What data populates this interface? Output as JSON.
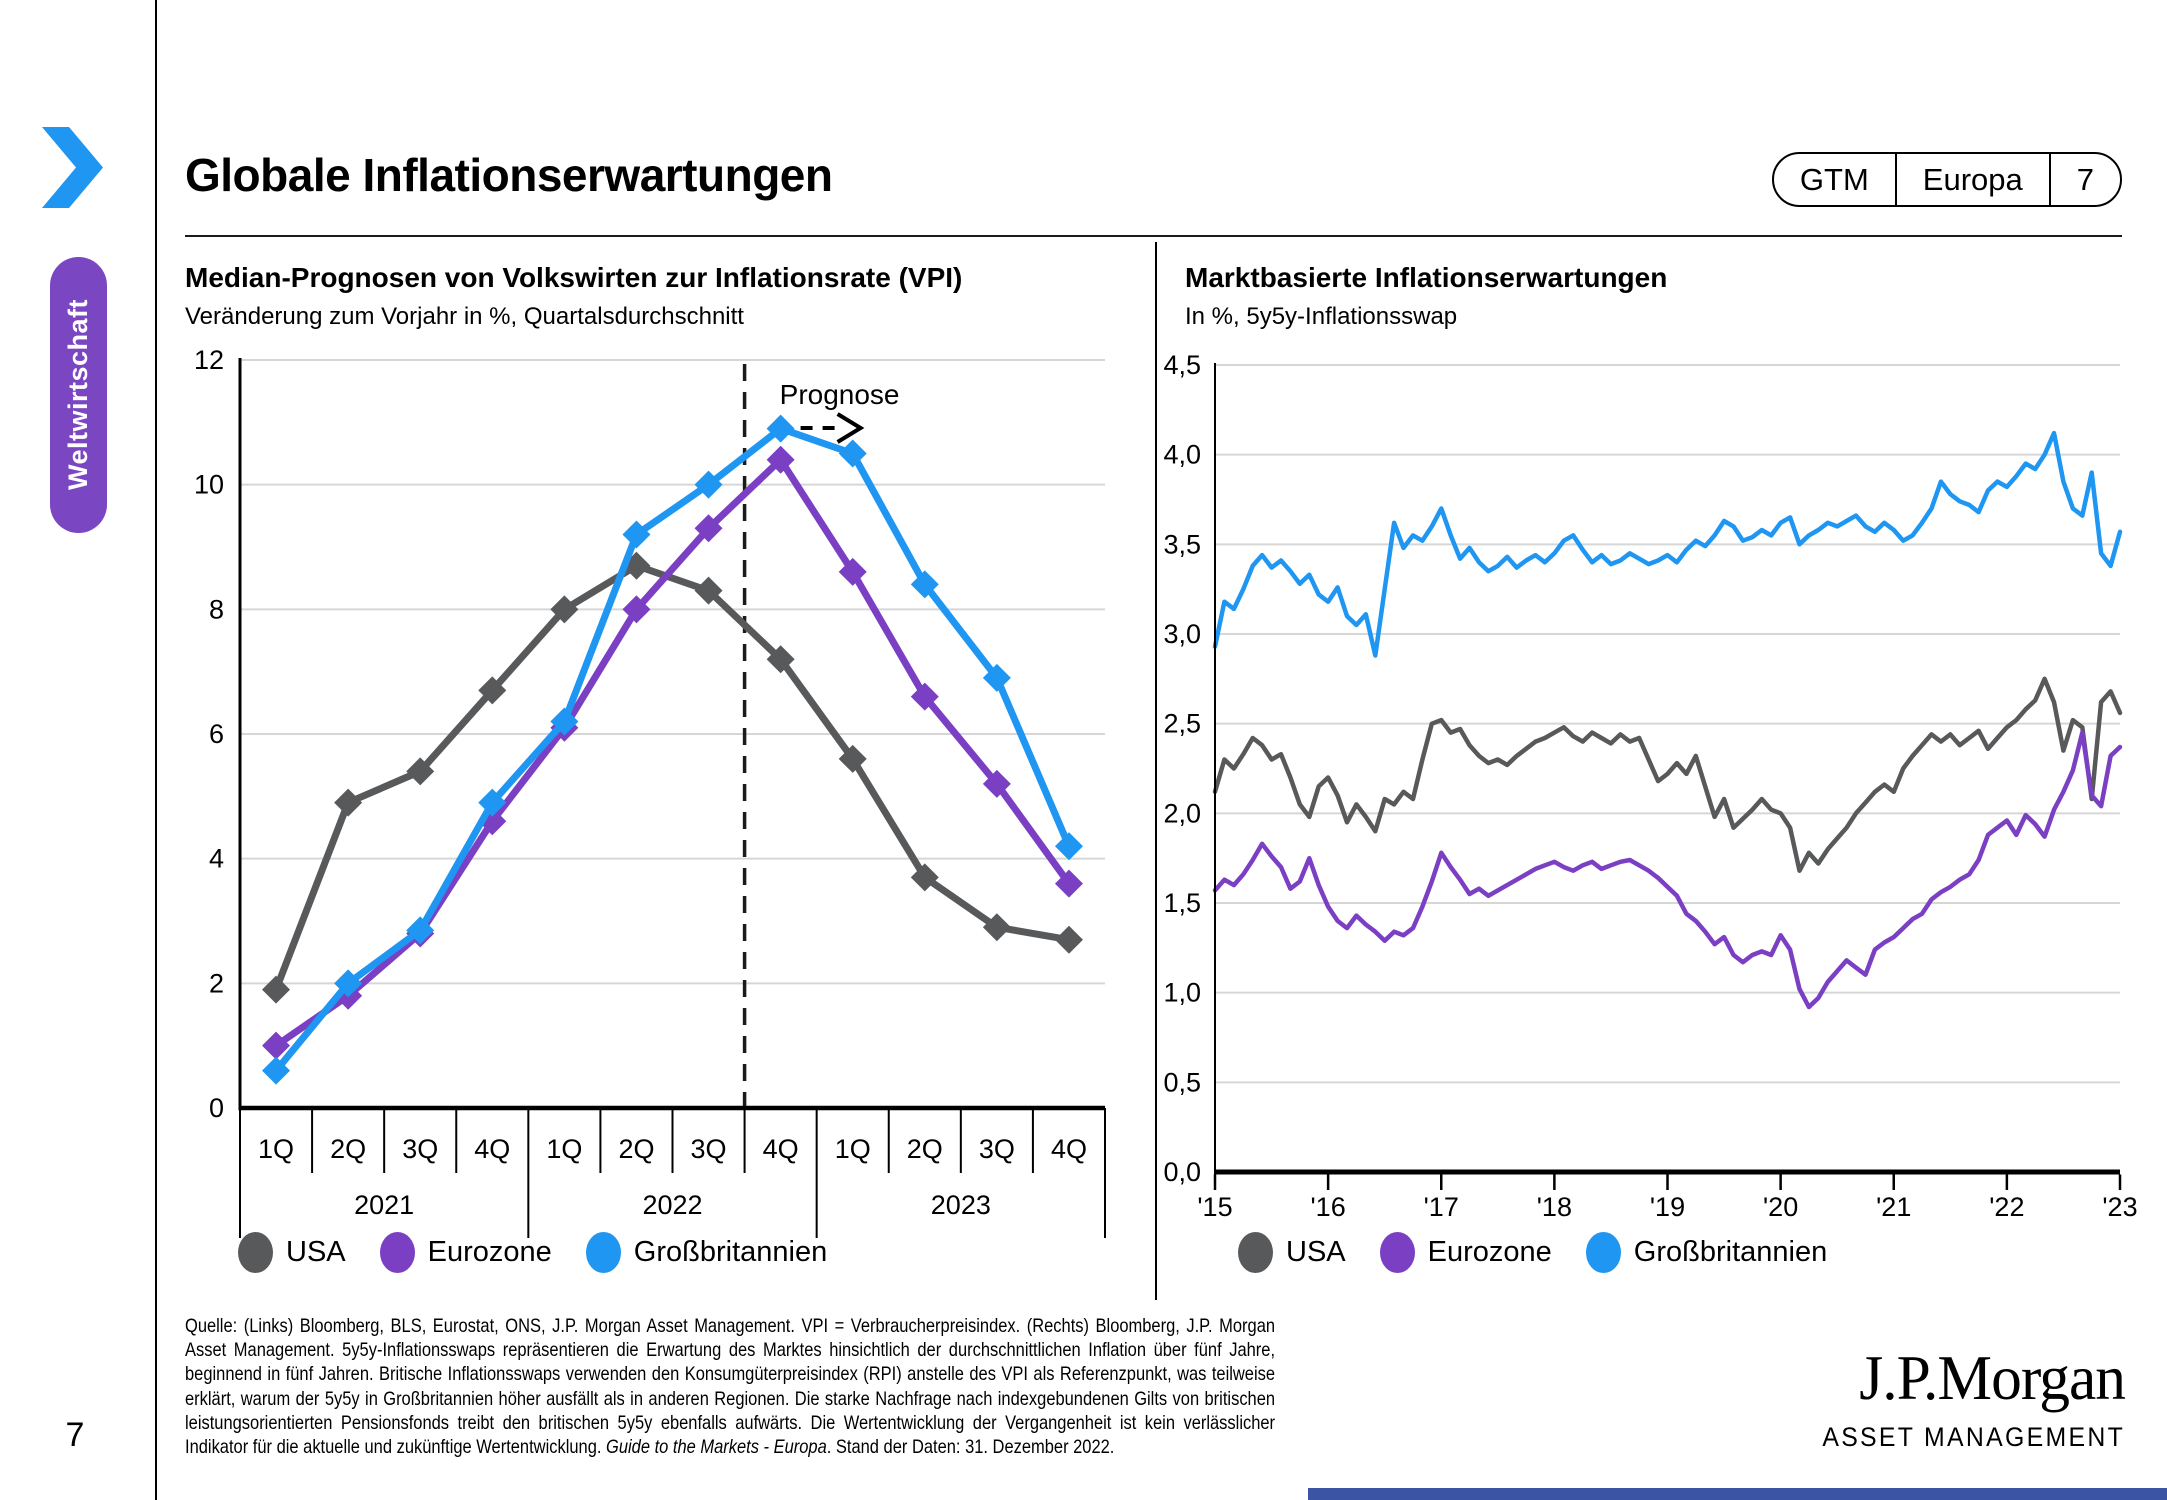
{
  "header": {
    "title": "Globale Inflationserwartungen",
    "badge": {
      "program": "GTM",
      "region": "Europa",
      "page": "7"
    }
  },
  "sidebar": {
    "section_label": "Weltwirtschaft",
    "pill_color": "#7A46C2",
    "chevron_color": "#1E96F2"
  },
  "page_number": "7",
  "chart_data": [
    {
      "type": "line",
      "title": "Median-Prognosen von Volkswirten zur Inflationsrate (VPI)",
      "subtitle": "Veränderung zum Vorjahr in %, Quartalsdurchschnitt",
      "ylim": [
        0,
        12
      ],
      "yticks": [
        0,
        2,
        4,
        6,
        8,
        10,
        12
      ],
      "quarters": [
        "1Q",
        "2Q",
        "3Q",
        "4Q",
        "1Q",
        "2Q",
        "3Q",
        "4Q",
        "1Q",
        "2Q",
        "3Q",
        "4Q"
      ],
      "years": [
        "2021",
        "2022",
        "2023"
      ],
      "grid": true,
      "legend_position": "bottom",
      "forecast": {
        "label": "Prognose",
        "starts_after_index": 6
      },
      "series": [
        {
          "name": "USA",
          "color": "#58595B",
          "values": [
            1.9,
            4.9,
            5.4,
            6.7,
            8.0,
            8.7,
            8.3,
            7.2,
            5.6,
            3.7,
            2.9,
            2.7
          ]
        },
        {
          "name": "Eurozone",
          "color": "#7B3FC4",
          "values": [
            1.0,
            1.8,
            2.8,
            4.6,
            6.1,
            8.0,
            9.3,
            10.4,
            8.6,
            6.6,
            5.2,
            3.6
          ]
        },
        {
          "name": "Großbritannien",
          "color": "#1E96F2",
          "values": [
            0.6,
            2.0,
            2.85,
            4.9,
            6.2,
            9.2,
            10.0,
            10.9,
            10.5,
            8.4,
            6.9,
            4.2
          ]
        }
      ]
    },
    {
      "type": "line",
      "title": "Marktbasierte Inflationserwartungen",
      "subtitle": "In %, 5y5y-Inflationsswap",
      "ylim": [
        0,
        4.5
      ],
      "ytick_labels": [
        "0,0",
        "0,5",
        "1,0",
        "1,5",
        "2,0",
        "2,5",
        "3,0",
        "3,5",
        "4,0",
        "4,5"
      ],
      "xlim": [
        2015,
        2023
      ],
      "xtick_labels": [
        "'15",
        "'16",
        "'17",
        "'18",
        "'19",
        "'20",
        "'21",
        "'22",
        "'23"
      ],
      "x_start_year": 2015,
      "x_step_months": 1,
      "grid": true,
      "legend_position": "bottom",
      "series": [
        {
          "name": "USA",
          "color": "#58595B",
          "values": [
            2.12,
            2.3,
            2.25,
            2.33,
            2.42,
            2.38,
            2.3,
            2.33,
            2.2,
            2.05,
            1.98,
            2.15,
            2.2,
            2.1,
            1.95,
            2.05,
            1.98,
            1.9,
            2.08,
            2.05,
            2.12,
            2.08,
            2.3,
            2.5,
            2.52,
            2.45,
            2.47,
            2.38,
            2.32,
            2.28,
            2.3,
            2.27,
            2.32,
            2.36,
            2.4,
            2.42,
            2.45,
            2.48,
            2.43,
            2.4,
            2.45,
            2.42,
            2.39,
            2.44,
            2.4,
            2.42,
            2.3,
            2.18,
            2.22,
            2.28,
            2.22,
            2.32,
            2.15,
            1.98,
            2.08,
            1.92,
            1.97,
            2.02,
            2.08,
            2.02,
            2.0,
            1.92,
            1.68,
            1.78,
            1.72,
            1.8,
            1.86,
            1.92,
            2.0,
            2.06,
            2.12,
            2.16,
            2.12,
            2.25,
            2.32,
            2.38,
            2.44,
            2.4,
            2.44,
            2.38,
            2.42,
            2.46,
            2.36,
            2.42,
            2.48,
            2.52,
            2.58,
            2.63,
            2.75,
            2.62,
            2.35,
            2.52,
            2.48,
            2.08,
            2.62,
            2.68,
            2.56
          ]
        },
        {
          "name": "Eurozone",
          "color": "#7B3FC4",
          "values": [
            1.57,
            1.63,
            1.6,
            1.66,
            1.74,
            1.83,
            1.76,
            1.7,
            1.58,
            1.62,
            1.75,
            1.6,
            1.48,
            1.4,
            1.36,
            1.43,
            1.38,
            1.34,
            1.29,
            1.34,
            1.32,
            1.36,
            1.48,
            1.62,
            1.78,
            1.7,
            1.63,
            1.55,
            1.58,
            1.54,
            1.57,
            1.6,
            1.63,
            1.66,
            1.69,
            1.71,
            1.73,
            1.7,
            1.68,
            1.71,
            1.73,
            1.69,
            1.71,
            1.73,
            1.74,
            1.71,
            1.68,
            1.64,
            1.59,
            1.54,
            1.44,
            1.4,
            1.34,
            1.27,
            1.31,
            1.21,
            1.17,
            1.21,
            1.23,
            1.21,
            1.32,
            1.24,
            1.02,
            0.92,
            0.97,
            1.06,
            1.12,
            1.18,
            1.14,
            1.1,
            1.24,
            1.28,
            1.31,
            1.36,
            1.41,
            1.44,
            1.52,
            1.56,
            1.59,
            1.63,
            1.66,
            1.74,
            1.88,
            1.92,
            1.96,
            1.88,
            1.99,
            1.94,
            1.87,
            2.02,
            2.12,
            2.24,
            2.45,
            2.1,
            2.04,
            2.32,
            2.37
          ]
        },
        {
          "name": "Großbritannien",
          "color": "#1E96F2",
          "values": [
            2.93,
            3.18,
            3.14,
            3.25,
            3.38,
            3.44,
            3.37,
            3.41,
            3.35,
            3.28,
            3.33,
            3.22,
            3.18,
            3.26,
            3.1,
            3.05,
            3.11,
            2.88,
            3.25,
            3.62,
            3.48,
            3.55,
            3.52,
            3.6,
            3.7,
            3.55,
            3.42,
            3.48,
            3.4,
            3.35,
            3.38,
            3.43,
            3.37,
            3.41,
            3.44,
            3.4,
            3.45,
            3.52,
            3.55,
            3.47,
            3.4,
            3.44,
            3.39,
            3.41,
            3.45,
            3.42,
            3.39,
            3.41,
            3.44,
            3.4,
            3.47,
            3.52,
            3.49,
            3.55,
            3.63,
            3.6,
            3.52,
            3.54,
            3.58,
            3.55,
            3.62,
            3.65,
            3.5,
            3.55,
            3.58,
            3.62,
            3.6,
            3.63,
            3.66,
            3.6,
            3.57,
            3.62,
            3.58,
            3.52,
            3.55,
            3.62,
            3.7,
            3.85,
            3.78,
            3.74,
            3.72,
            3.68,
            3.8,
            3.85,
            3.82,
            3.88,
            3.95,
            3.92,
            4.0,
            4.12,
            3.85,
            3.7,
            3.66,
            3.9,
            3.45,
            3.38,
            3.57
          ]
        }
      ]
    }
  ],
  "footer": {
    "source_prefix": "Quelle: (Links) Bloomberg, BLS, Eurostat, ONS, J.P. Morgan Asset Management. VPI = Verbraucherpreisindex. (Rechts) Bloomberg, J.P. Morgan Asset Management. 5y5y-Inflationsswaps repräsentieren die Erwartung des Marktes hinsichtlich der durchschnittlichen Inflation über fünf Jahre, beginnend in fünf Jahren. Britische Inflationsswaps verwenden den Konsumgüterpreisindex (RPI) anstelle des VPI als Referenzpunkt, was teilweise erklärt, warum der 5y5y in Großbritannien höher ausfällt als in anderen Regionen. Die starke Nachfrage nach indexgebundenen Gilts von britischen leistungsorientierten Pensionsfonds treibt den britischen 5y5y ebenfalls aufwärts. Die Wertentwicklung der Vergangenheit ist kein verlässlicher Indikator für die aktuelle und zukünftige Wertentwicklung. ",
    "source_italic": "Guide to the Markets - Europa",
    "source_suffix": ". Stand der Daten: 31. Dezember 2022.",
    "logo_line1": "J.P.Morgan",
    "logo_line2": "ASSET MANAGEMENT",
    "bottom_bar_color": "#3B54A3"
  }
}
